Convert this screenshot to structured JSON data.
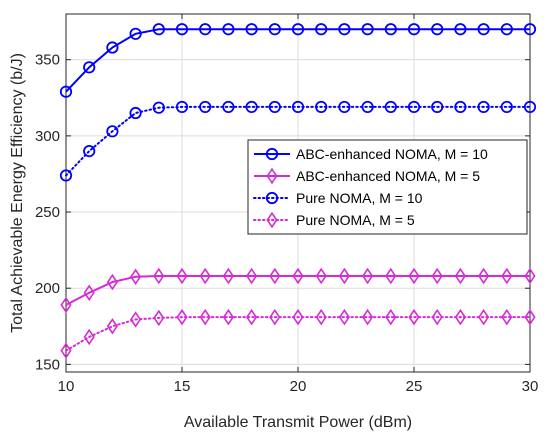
{
  "chart_data": {
    "type": "line",
    "title": "",
    "xlabel": "Available Transmit Power (dBm)",
    "ylabel": "Total Achievable Energy Efficiency (b/J)",
    "xlim": [
      10,
      30
    ],
    "ylim": [
      145,
      380
    ],
    "xticks": [
      10,
      15,
      20,
      25,
      30
    ],
    "yticks": [
      150,
      200,
      250,
      300,
      350
    ],
    "grid": true,
    "legend_position": "center-right",
    "x": [
      10,
      11,
      12,
      13,
      14,
      15,
      16,
      17,
      18,
      19,
      20,
      21,
      22,
      23,
      24,
      25,
      26,
      27,
      28,
      29,
      30
    ],
    "series": [
      {
        "name": "ABC-enhanced NOMA, M = 10",
        "color": "#0000ff",
        "line_style": "solid",
        "marker": "circle",
        "values": [
          329,
          345,
          358,
          367,
          370,
          370,
          370,
          370,
          370,
          370,
          370,
          370,
          370,
          370,
          370,
          370,
          370,
          370,
          370,
          370,
          370
        ]
      },
      {
        "name": "ABC-enhanced NOMA, M = 5",
        "color": "#d62ad6",
        "line_style": "solid",
        "marker": "diamond",
        "values": [
          189,
          197,
          204,
          207.5,
          208,
          208,
          208,
          208,
          208,
          208,
          208,
          208,
          208,
          208,
          208,
          208,
          208,
          208,
          208,
          208,
          208
        ]
      },
      {
        "name": "Pure NOMA, M = 10",
        "color": "#0000ff",
        "line_style": "dotted",
        "marker": "circle",
        "values": [
          274,
          290,
          303,
          315,
          318.5,
          319,
          319,
          319,
          319,
          319,
          319,
          319,
          319,
          319,
          319,
          319,
          319,
          319,
          319,
          319,
          319
        ]
      },
      {
        "name": "Pure NOMA, M = 5",
        "color": "#d62ad6",
        "line_style": "dotted",
        "marker": "diamond",
        "values": [
          159,
          168,
          175,
          179.5,
          180.5,
          181,
          181,
          181,
          181,
          181,
          181,
          181,
          181,
          181,
          181,
          181,
          181,
          181,
          181,
          181,
          181
        ]
      }
    ]
  }
}
